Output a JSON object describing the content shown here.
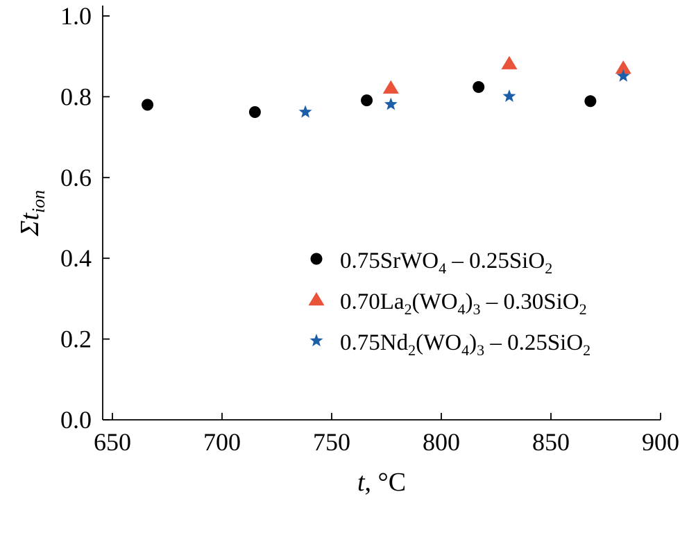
{
  "chart_data": {
    "type": "scatter",
    "xlabel": {
      "italic": "t",
      "rest": ", °C"
    },
    "ylabel": {
      "main": "Σt",
      "sub": "ion"
    },
    "xlim": [
      645,
      900
    ],
    "ylim": [
      0.0,
      1.03
    ],
    "xticks": [
      650,
      700,
      750,
      800,
      850,
      900
    ],
    "xtick_labels": [
      "650",
      "700",
      "750",
      "800",
      "850",
      "900"
    ],
    "yticks": [
      0.0,
      0.2,
      0.4,
      0.6,
      0.8,
      1.0
    ],
    "ytick_labels": [
      "0.0",
      "0.2",
      "0.4",
      "0.6",
      "0.8",
      "1.0"
    ],
    "grid": false,
    "legend_position": "center-right",
    "series": [
      {
        "name": "0.75SrWO4 – 0.25SiO2",
        "name_parts": [
          [
            "0.75SrWO",
            ""
          ],
          [
            "4",
            "sub"
          ],
          [
            " – 0.25SiO",
            ""
          ],
          [
            "2",
            "sub"
          ]
        ],
        "marker": "circle",
        "color": "#000000",
        "x": [
          666,
          715,
          766,
          817,
          868
        ],
        "y": [
          0.78,
          0.762,
          0.791,
          0.824,
          0.789
        ]
      },
      {
        "name": "0.70La2(WO4)3 – 0.30SiO2",
        "name_parts": [
          [
            "0.70La",
            ""
          ],
          [
            "2",
            "sub"
          ],
          [
            "(WO",
            ""
          ],
          [
            "4",
            "sub"
          ],
          [
            ")",
            ""
          ],
          [
            "3",
            "sub"
          ],
          [
            " – 0.30SiO",
            ""
          ],
          [
            "2",
            "sub"
          ]
        ],
        "marker": "triangle",
        "color": "#e8533a",
        "x": [
          777,
          831,
          883
        ],
        "y": [
          0.822,
          0.882,
          0.871
        ]
      },
      {
        "name": "0.75Nd2(WO4)3 – 0.25SiO2",
        "name_parts": [
          [
            "0.75Nd",
            ""
          ],
          [
            "2",
            "sub"
          ],
          [
            "(WO",
            ""
          ],
          [
            "4",
            "sub"
          ],
          [
            ")",
            ""
          ],
          [
            "3",
            "sub"
          ],
          [
            " – 0.25SiO",
            ""
          ],
          [
            "2",
            "sub"
          ]
        ],
        "marker": "star",
        "color": "#1a5fa8",
        "x": [
          738,
          777,
          831,
          883
        ],
        "y": [
          0.762,
          0.781,
          0.801,
          0.851
        ]
      }
    ]
  }
}
